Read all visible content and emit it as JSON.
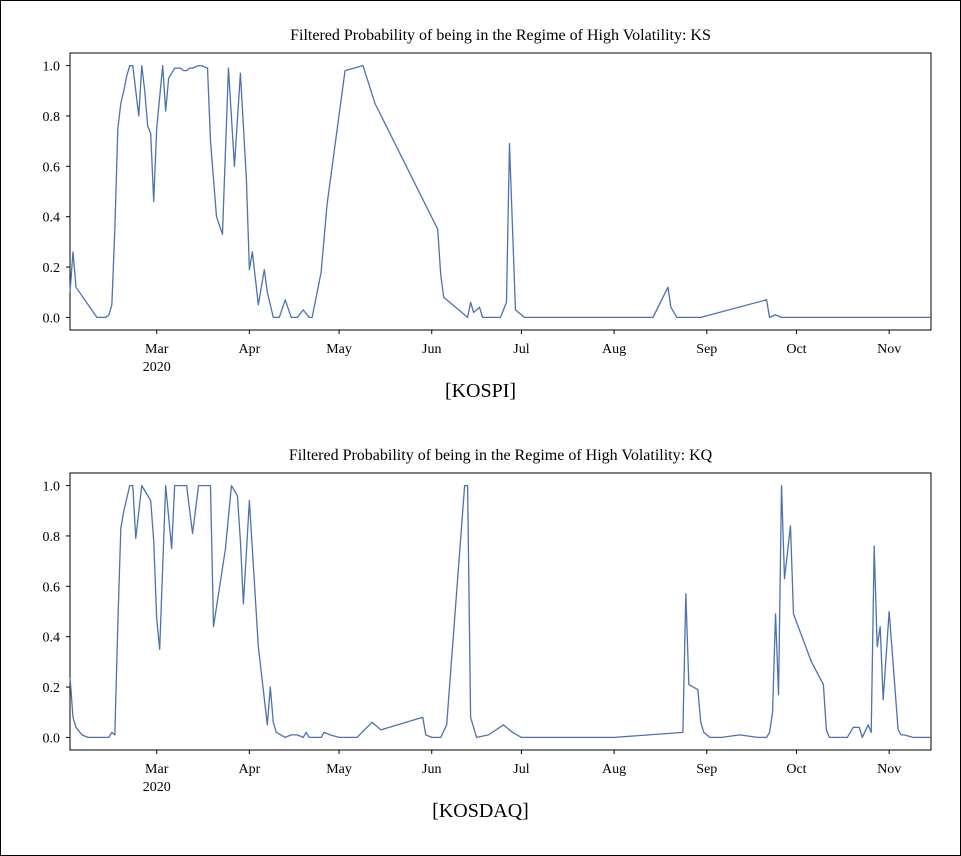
{
  "captions": [
    "[KOSPI]",
    "[KOSDAQ]"
  ],
  "chart_data": [
    {
      "type": "line",
      "title": "Filtered Probability of being in the Regime of High Volatility: KS",
      "xlabel": "",
      "ylabel": "",
      "line_color": "#4c72b0",
      "ylim": [
        -0.05,
        1.05
      ],
      "yticks": [
        0.0,
        0.2,
        0.4,
        0.6,
        0.8,
        1.0
      ],
      "ytick_labels": [
        "0.0",
        "0.2",
        "0.4",
        "0.6",
        "0.8",
        "1.0"
      ],
      "xlim": [
        "2020-02-01",
        "2020-11-15"
      ],
      "xticks": [
        "2020-03-01",
        "2020-04-01",
        "2020-05-01",
        "2020-06-01",
        "2020-07-01",
        "2020-08-01",
        "2020-09-01",
        "2020-10-01",
        "2020-11-01"
      ],
      "xtick_labels": [
        "Mar",
        "Apr",
        "May",
        "Jun",
        "Jul",
        "Aug",
        "Sep",
        "Oct",
        "Nov"
      ],
      "year_label": "2020",
      "grid": false,
      "x": [
        "2020-02-01",
        "2020-02-02",
        "2020-02-03",
        "2020-02-10",
        "2020-02-11",
        "2020-02-12",
        "2020-02-13",
        "2020-02-14",
        "2020-02-15",
        "2020-02-16",
        "2020-02-17",
        "2020-02-18",
        "2020-02-19",
        "2020-02-20",
        "2020-02-21",
        "2020-02-22",
        "2020-02-24",
        "2020-02-25",
        "2020-02-26",
        "2020-02-27",
        "2020-02-28",
        "2020-02-29",
        "2020-03-01",
        "2020-03-03",
        "2020-03-04",
        "2020-03-05",
        "2020-03-07",
        "2020-03-08",
        "2020-03-09",
        "2020-03-10",
        "2020-03-11",
        "2020-03-12",
        "2020-03-13",
        "2020-03-15",
        "2020-03-16",
        "2020-03-18",
        "2020-03-19",
        "2020-03-21",
        "2020-03-23",
        "2020-03-25",
        "2020-03-27",
        "2020-03-29",
        "2020-03-31",
        "2020-04-01",
        "2020-04-02",
        "2020-04-04",
        "2020-04-06",
        "2020-04-07",
        "2020-04-09",
        "2020-04-11",
        "2020-04-13",
        "2020-04-15",
        "2020-04-17",
        "2020-04-19",
        "2020-04-21",
        "2020-04-22",
        "2020-04-25",
        "2020-04-27",
        "2020-05-03",
        "2020-05-09",
        "2020-05-13",
        "2020-06-03",
        "2020-06-04",
        "2020-06-05",
        "2020-06-12",
        "2020-06-13",
        "2020-06-14",
        "2020-06-15",
        "2020-06-17",
        "2020-06-18",
        "2020-06-19",
        "2020-06-21",
        "2020-06-24",
        "2020-06-26",
        "2020-06-27",
        "2020-06-28",
        "2020-06-29",
        "2020-07-02",
        "2020-07-03",
        "2020-08-14",
        "2020-08-19",
        "2020-08-20",
        "2020-08-22",
        "2020-08-24",
        "2020-08-26",
        "2020-08-27",
        "2020-08-30",
        "2020-09-21",
        "2020-09-22",
        "2020-09-24",
        "2020-09-26",
        "2020-09-28",
        "2020-10-01",
        "2020-10-31",
        "2020-11-01",
        "2020-11-05",
        "2020-11-07",
        "2020-11-08",
        "2020-11-10",
        "2020-11-15"
      ],
      "series": [
        {
          "values": [
            0.1,
            0.26,
            0.12,
            0.0,
            0.0,
            0.0,
            0.0,
            0.01,
            0.05,
            0.35,
            0.75,
            0.85,
            0.9,
            0.96,
            1.0,
            1.0,
            0.8,
            1.0,
            0.9,
            0.76,
            0.73,
            0.46,
            0.75,
            1.0,
            0.82,
            0.95,
            0.99,
            0.99,
            0.99,
            0.98,
            0.98,
            0.99,
            0.99,
            1.0,
            1.0,
            0.99,
            0.7,
            0.4,
            0.33,
            0.99,
            0.6,
            0.97,
            0.55,
            0.19,
            0.26,
            0.05,
            0.19,
            0.1,
            0.0,
            0.0,
            0.07,
            0.0,
            0.0,
            0.03,
            0.0,
            0.0,
            0.18,
            0.45,
            0.98,
            1.0,
            0.85,
            0.35,
            0.17,
            0.08,
            0.01,
            0.0,
            0.06,
            0.02,
            0.04,
            0.0,
            0.0,
            0.0,
            0.0,
            0.06,
            0.69,
            0.36,
            0.03,
            0.0,
            0.0,
            0.0,
            0.12,
            0.04,
            0.0,
            0.0,
            0.0,
            0.0,
            0.0,
            0.07,
            0.0,
            0.01,
            0.0,
            0.0,
            0.0,
            0.0,
            0.0,
            0.0,
            0.0,
            0.0,
            0.0,
            0.0
          ]
        }
      ]
    },
    {
      "type": "line",
      "title": "Filtered Probability of being in the Regime of High Volatility: KQ",
      "xlabel": "",
      "ylabel": "",
      "line_color": "#4c72b0",
      "ylim": [
        -0.05,
        1.05
      ],
      "yticks": [
        0.0,
        0.2,
        0.4,
        0.6,
        0.8,
        1.0
      ],
      "ytick_labels": [
        "0.0",
        "0.2",
        "0.4",
        "0.6",
        "0.8",
        "1.0"
      ],
      "xlim": [
        "2020-02-01",
        "2020-11-15"
      ],
      "xticks": [
        "2020-03-01",
        "2020-04-01",
        "2020-05-01",
        "2020-06-01",
        "2020-07-01",
        "2020-08-01",
        "2020-09-01",
        "2020-10-01",
        "2020-11-01"
      ],
      "xtick_labels": [
        "Mar",
        "Apr",
        "May",
        "Jun",
        "Jul",
        "Aug",
        "Sep",
        "Oct",
        "Nov"
      ],
      "year_label": "2020",
      "grid": false,
      "x": [
        "2020-02-01",
        "2020-02-02",
        "2020-02-03",
        "2020-02-05",
        "2020-02-07",
        "2020-02-09",
        "2020-02-14",
        "2020-02-15",
        "2020-02-16",
        "2020-02-17",
        "2020-02-18",
        "2020-02-19",
        "2020-02-21",
        "2020-02-22",
        "2020-02-23",
        "2020-02-25",
        "2020-02-26",
        "2020-02-28",
        "2020-02-29",
        "2020-03-01",
        "2020-03-02",
        "2020-03-04",
        "2020-03-06",
        "2020-03-07",
        "2020-03-09",
        "2020-03-11",
        "2020-03-13",
        "2020-03-15",
        "2020-03-16",
        "2020-03-19",
        "2020-03-20",
        "2020-03-24",
        "2020-03-26",
        "2020-03-28",
        "2020-03-29",
        "2020-03-30",
        "2020-04-01",
        "2020-04-04",
        "2020-04-07",
        "2020-04-08",
        "2020-04-09",
        "2020-04-10",
        "2020-04-13",
        "2020-04-15",
        "2020-04-17",
        "2020-04-19",
        "2020-04-20",
        "2020-04-21",
        "2020-04-23",
        "2020-04-25",
        "2020-04-26",
        "2020-04-28",
        "2020-05-01",
        "2020-05-02",
        "2020-05-06",
        "2020-05-07",
        "2020-05-12",
        "2020-05-15",
        "2020-05-29",
        "2020-05-30",
        "2020-06-01",
        "2020-06-02",
        "2020-06-03",
        "2020-06-04",
        "2020-06-06",
        "2020-06-12",
        "2020-06-13",
        "2020-06-14",
        "2020-06-16",
        "2020-06-20",
        "2020-06-25",
        "2020-06-28",
        "2020-07-01",
        "2020-07-02",
        "2020-07-06",
        "2020-07-07",
        "2020-08-01",
        "2020-08-24",
        "2020-08-25",
        "2020-08-26",
        "2020-08-29",
        "2020-08-30",
        "2020-08-31",
        "2020-09-02",
        "2020-09-03",
        "2020-09-06",
        "2020-09-12",
        "2020-09-18",
        "2020-09-21",
        "2020-09-22",
        "2020-09-23",
        "2020-09-24",
        "2020-09-25",
        "2020-09-26",
        "2020-09-27",
        "2020-09-29",
        "2020-09-30",
        "2020-10-06",
        "2020-10-10",
        "2020-10-11",
        "2020-10-12",
        "2020-10-14",
        "2020-10-17",
        "2020-10-18",
        "2020-10-20",
        "2020-10-21",
        "2020-10-22",
        "2020-10-23",
        "2020-10-25",
        "2020-10-26",
        "2020-10-27",
        "2020-10-28",
        "2020-10-29",
        "2020-10-30",
        "2020-11-01",
        "2020-11-04",
        "2020-11-05",
        "2020-11-06",
        "2020-11-09",
        "2020-11-12",
        "2020-11-15"
      ],
      "series": [
        {
          "values": [
            0.24,
            0.08,
            0.04,
            0.01,
            0.0,
            0.0,
            0.0,
            0.02,
            0.01,
            0.45,
            0.83,
            0.9,
            1.0,
            1.0,
            0.79,
            1.0,
            0.98,
            0.94,
            0.78,
            0.47,
            0.35,
            1.0,
            0.75,
            1.0,
            1.0,
            1.0,
            0.81,
            1.0,
            1.0,
            1.0,
            0.44,
            0.75,
            1.0,
            0.96,
            0.78,
            0.53,
            0.94,
            0.36,
            0.05,
            0.2,
            0.06,
            0.02,
            0.0,
            0.01,
            0.01,
            0.0,
            0.02,
            0.0,
            0.0,
            0.0,
            0.02,
            0.01,
            0.0,
            0.0,
            0.0,
            0.0,
            0.06,
            0.03,
            0.08,
            0.01,
            0.0,
            0.0,
            0.0,
            0.0,
            0.05,
            1.0,
            1.0,
            0.08,
            0.0,
            0.01,
            0.05,
            0.02,
            0.0,
            0.0,
            0.0,
            0.0,
            0.0,
            0.02,
            0.57,
            0.21,
            0.19,
            0.06,
            0.02,
            0.0,
            0.0,
            0.0,
            0.01,
            0.0,
            0.0,
            0.02,
            0.1,
            0.49,
            0.17,
            1.0,
            0.63,
            0.84,
            0.49,
            0.3,
            0.21,
            0.03,
            0.0,
            0.0,
            0.0,
            0.0,
            0.04,
            0.04,
            0.04,
            0.0,
            0.05,
            0.02,
            0.76,
            0.36,
            0.44,
            0.15,
            0.5,
            0.03,
            0.01,
            0.01,
            0.0,
            0.0,
            0.0
          ]
        }
      ]
    }
  ]
}
